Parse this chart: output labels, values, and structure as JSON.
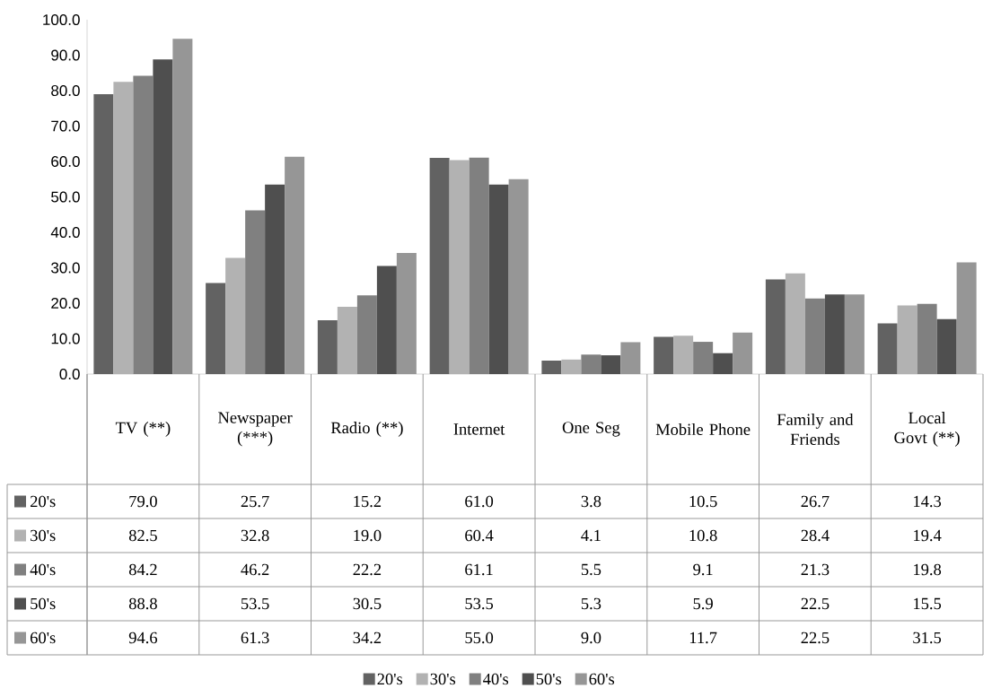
{
  "chart_data": {
    "type": "bar",
    "categories": [
      "TV (**)",
      "Newspaper (***)",
      "Radio (**)",
      "Internet",
      "One Seg",
      "Mobile Phone",
      "Family and Friends",
      "Local Govt (**)"
    ],
    "series": [
      {
        "name": "20's",
        "color": "#626262",
        "values": [
          79.0,
          25.7,
          15.2,
          61.0,
          3.8,
          10.5,
          26.7,
          14.3
        ],
        "value_labels": [
          "79.0",
          "25.7",
          "15.2",
          "61.0",
          "3.8",
          "10.5",
          "26.7",
          "14.3"
        ]
      },
      {
        "name": "30's",
        "color": "#b2b2b2",
        "values": [
          82.5,
          32.8,
          19.0,
          60.4,
          4.1,
          10.8,
          28.4,
          19.4
        ],
        "value_labels": [
          "82.5",
          "32.8",
          "19.0",
          "60.4",
          "4.1",
          "10.8",
          "28.4",
          "19.4"
        ]
      },
      {
        "name": "40's",
        "color": "#808080",
        "values": [
          84.2,
          46.2,
          22.2,
          61.1,
          5.5,
          9.1,
          21.3,
          19.8
        ],
        "value_labels": [
          "84.2",
          "46.2",
          "22.2",
          "61.1",
          "5.5",
          "9.1",
          "21.3",
          "19.8"
        ]
      },
      {
        "name": "50's",
        "color": "#4f4f4f",
        "values": [
          88.8,
          53.5,
          30.5,
          53.5,
          5.3,
          5.9,
          22.5,
          15.5
        ],
        "value_labels": [
          "88.8",
          "53.5",
          "30.5",
          "53.5",
          "5.3",
          "5.9",
          "22.5",
          "15.5"
        ]
      },
      {
        "name": "60's",
        "color": "#969696",
        "values": [
          94.6,
          61.3,
          34.2,
          55.0,
          9.0,
          11.7,
          22.5,
          31.5
        ],
        "value_labels": [
          "94.6",
          "61.3",
          "34.2",
          "55.0",
          "9.0",
          "11.7",
          "22.5",
          "31.5"
        ]
      }
    ],
    "ylim": [
      0,
      100
    ],
    "yticks": [
      {
        "value": 0,
        "label": "0.0"
      },
      {
        "value": 10,
        "label": "10.0"
      },
      {
        "value": 20,
        "label": "20.0"
      },
      {
        "value": 30,
        "label": "30.0"
      },
      {
        "value": 40,
        "label": "40.0"
      },
      {
        "value": 50,
        "label": "50.0"
      },
      {
        "value": 60,
        "label": "60.0"
      },
      {
        "value": 70,
        "label": "70.0"
      },
      {
        "value": 80,
        "label": "80.0"
      },
      {
        "value": 90,
        "label": "90.0"
      },
      {
        "value": 100,
        "label": "100.0"
      }
    ],
    "legend": "bottom"
  }
}
